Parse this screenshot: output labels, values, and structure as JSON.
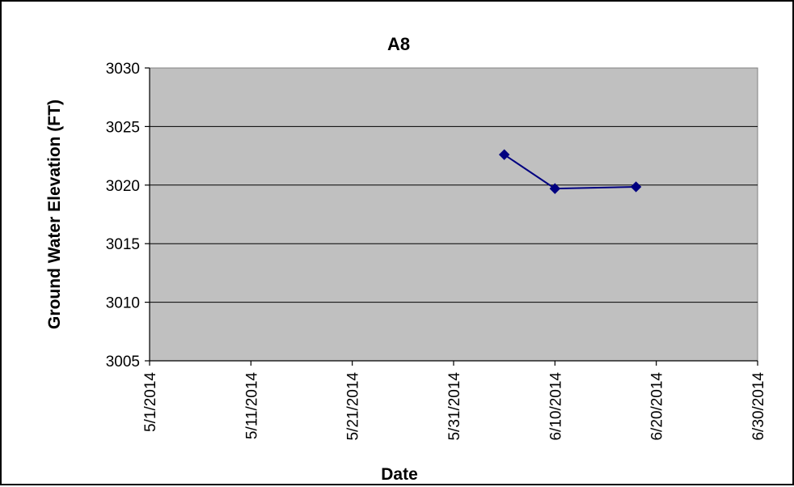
{
  "chart_data": {
    "type": "line",
    "title": "A8",
    "xlabel": "Date",
    "ylabel": "Ground Water Elevation (FT)",
    "x_tick_labels": [
      "5/1/2014",
      "5/11/2014",
      "5/21/2014",
      "5/31/2014",
      "6/10/2014",
      "6/20/2014",
      "6/30/2014"
    ],
    "y_tick_labels": [
      "3005",
      "3010",
      "3015",
      "3020",
      "3025",
      "3030"
    ],
    "xlim": [
      "2014-05-01",
      "2014-06-30"
    ],
    "ylim": [
      3005,
      3030
    ],
    "grid": "horizontal",
    "plot_background": "#c0c0c0",
    "series": [
      {
        "color": "#000080",
        "marker": "diamond",
        "points": [
          {
            "x": "2014-06-05",
            "y": 3022.6
          },
          {
            "x": "2014-06-10",
            "y": 3019.7
          },
          {
            "x": "2014-06-18",
            "y": 3019.85
          }
        ]
      }
    ]
  }
}
